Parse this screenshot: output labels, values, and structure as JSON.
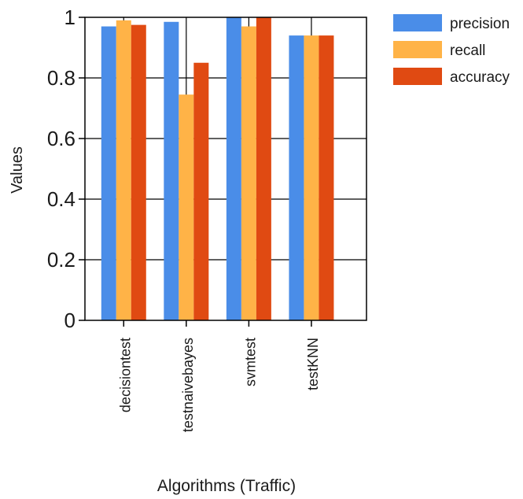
{
  "chart_data": {
    "type": "bar",
    "title": "",
    "xlabel": "Algorithms (Traffic)",
    "ylabel": "Values",
    "ylim": [
      0,
      1
    ],
    "yticks": [
      0,
      0.2,
      0.4,
      0.6,
      0.8,
      1
    ],
    "ytick_labels": [
      "0",
      "0.2",
      "0.4",
      "0.6",
      "0.8",
      "1"
    ],
    "categories": [
      "decisiontest",
      "testnaivebayes",
      "svmtest",
      "testKNN"
    ],
    "grid": "horizontal",
    "legend_position": "top-right",
    "series": [
      {
        "name": "precision",
        "color": "#4a8de8",
        "values": [
          0.97,
          0.985,
          1.0,
          0.94
        ]
      },
      {
        "name": "recall",
        "color": "#ffb347",
        "values": [
          0.99,
          0.745,
          0.97,
          0.94
        ]
      },
      {
        "name": "accuracy",
        "color": "#e04a12",
        "values": [
          0.975,
          0.85,
          1.0,
          0.94
        ]
      }
    ]
  }
}
